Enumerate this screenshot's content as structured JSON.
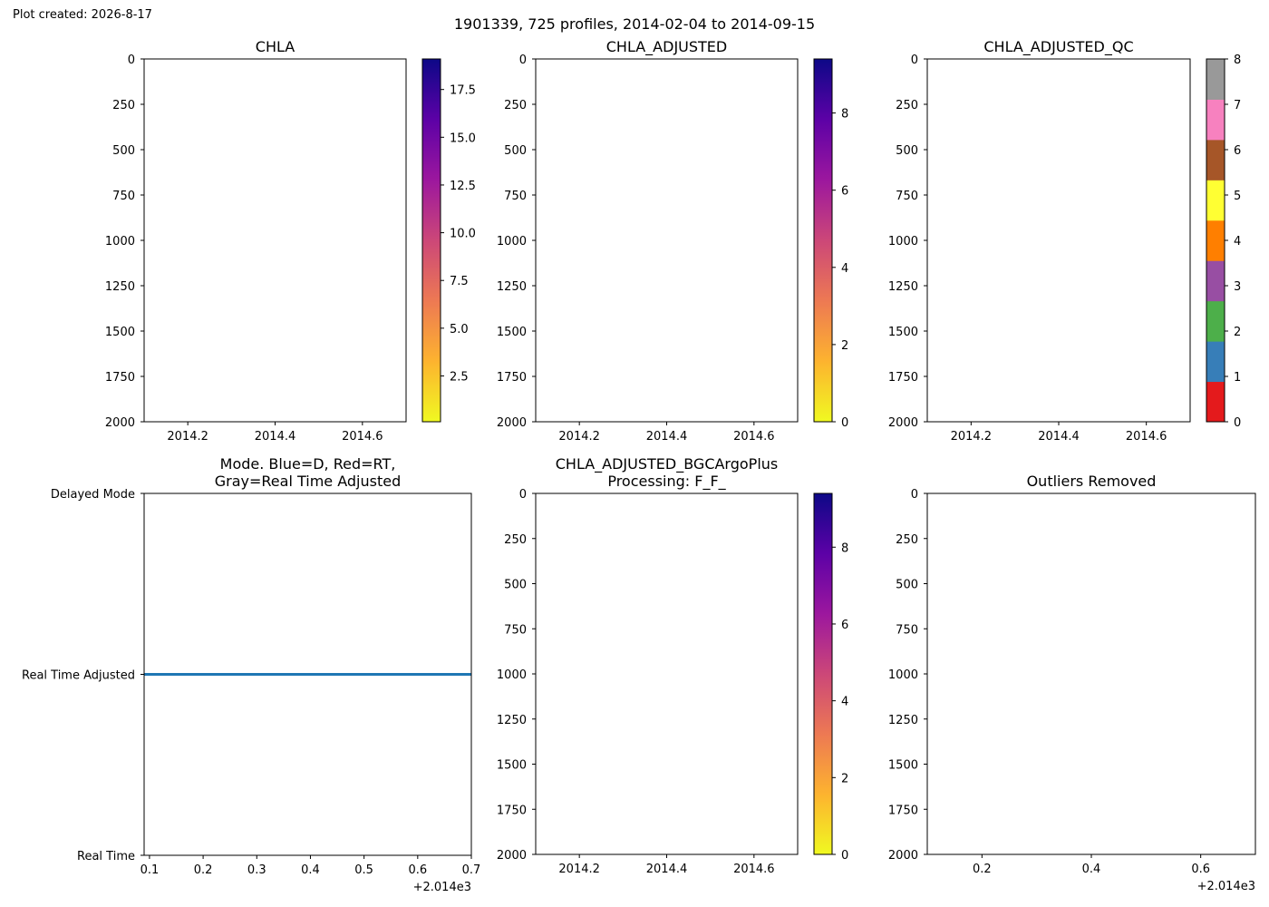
{
  "figure": {
    "created_label": "Plot created: 2026-8-17",
    "suptitle": "1901339, 725 profiles, 2014-02-04 to 2014-09-15"
  },
  "chart_data": [
    {
      "type": "heatmap",
      "title": "CHLA",
      "xlim": [
        2014.1,
        2014.7
      ],
      "xticks": [
        2014.2,
        2014.4,
        2014.6
      ],
      "xtick_labels": [
        "2014.2",
        "2014.4",
        "2014.6"
      ],
      "ylim": [
        0,
        2000
      ],
      "yinverted": true,
      "yticks": [
        0,
        250,
        500,
        750,
        1000,
        1250,
        1500,
        1750,
        2000
      ],
      "ytick_labels": [
        "0",
        "250",
        "500",
        "750",
        "1000",
        "1250",
        "1500",
        "1750",
        "2000"
      ],
      "values": [],
      "colorbar": {
        "colormap": "plasma_r",
        "range": [
          0.1,
          19.1
        ],
        "ticks": [
          2.5,
          5.0,
          7.5,
          10.0,
          12.5,
          15.0,
          17.5
        ],
        "tick_labels": [
          "2.5",
          "5.0",
          "7.5",
          "10.0",
          "12.5",
          "15.0",
          "17.5"
        ],
        "colors": [
          "#f0f921",
          "#fdb32f",
          "#ed7953",
          "#cc4778",
          "#9c179e",
          "#5c01a6",
          "#0d0887"
        ]
      }
    },
    {
      "type": "heatmap",
      "title": "CHLA_ADJUSTED",
      "xlim": [
        2014.1,
        2014.7
      ],
      "xticks": [
        2014.2,
        2014.4,
        2014.6
      ],
      "xtick_labels": [
        "2014.2",
        "2014.4",
        "2014.6"
      ],
      "ylim": [
        0,
        2000
      ],
      "yinverted": true,
      "yticks": [
        0,
        250,
        500,
        750,
        1000,
        1250,
        1500,
        1750,
        2000
      ],
      "ytick_labels": [
        "0",
        "250",
        "500",
        "750",
        "1000",
        "1250",
        "1500",
        "1750",
        "2000"
      ],
      "values": [],
      "colorbar": {
        "colormap": "plasma_r",
        "range": [
          0,
          9.4
        ],
        "ticks": [
          0,
          2,
          4,
          6,
          8
        ],
        "tick_labels": [
          "0",
          "2",
          "4",
          "6",
          "8"
        ],
        "colors": [
          "#f0f921",
          "#fdb32f",
          "#ed7953",
          "#cc4778",
          "#9c179e",
          "#5c01a6",
          "#0d0887"
        ]
      }
    },
    {
      "type": "heatmap",
      "title": "CHLA_ADJUSTED_QC",
      "xlim": [
        2014.1,
        2014.7
      ],
      "xticks": [
        2014.2,
        2014.4,
        2014.6
      ],
      "xtick_labels": [
        "2014.2",
        "2014.4",
        "2014.6"
      ],
      "ylim": [
        0,
        2000
      ],
      "yinverted": true,
      "yticks": [
        0,
        250,
        500,
        750,
        1000,
        1250,
        1500,
        1750,
        2000
      ],
      "ytick_labels": [
        "0",
        "250",
        "500",
        "750",
        "1000",
        "1250",
        "1500",
        "1750",
        "2000"
      ],
      "values": [],
      "colorbar": {
        "colormap": "Set1",
        "discrete": true,
        "range": [
          0,
          8
        ],
        "ticks": [
          0,
          1,
          2,
          3,
          4,
          5,
          6,
          7,
          8
        ],
        "tick_labels": [
          "0",
          "1",
          "2",
          "3",
          "4",
          "5",
          "6",
          "7",
          "8"
        ],
        "colors": [
          "#e41a1c",
          "#377eb8",
          "#4daf4a",
          "#984ea3",
          "#ff7f00",
          "#ffff33",
          "#a65628",
          "#f781bf",
          "#999999"
        ]
      }
    },
    {
      "type": "line",
      "title": "Mode. Blue=D, Red=RT,\nGray=Real Time Adjusted",
      "xlim": [
        0.09,
        0.7
      ],
      "xticks": [
        0.1,
        0.2,
        0.3,
        0.4,
        0.5,
        0.6,
        0.7
      ],
      "xtick_labels": [
        "0.1",
        "0.2",
        "0.3",
        "0.4",
        "0.5",
        "0.6",
        "0.7"
      ],
      "x_offset_label": "+2.014e3",
      "ylim": [
        0,
        2
      ],
      "yticks": [
        0,
        1,
        2
      ],
      "ytick_labels": [
        "Real Time",
        "Real Time Adjusted",
        "Delayed Mode"
      ],
      "series": [
        {
          "x": [
            0.09,
            0.7
          ],
          "y": [
            1,
            1
          ],
          "color": "#1f77b4"
        }
      ]
    },
    {
      "type": "heatmap",
      "title": "CHLA_ADJUSTED_BGCArgoPlus\nProcessing: F_F_",
      "xlim": [
        2014.1,
        2014.7
      ],
      "xticks": [
        2014.2,
        2014.4,
        2014.6
      ],
      "xtick_labels": [
        "2014.2",
        "2014.4",
        "2014.6"
      ],
      "ylim": [
        0,
        2000
      ],
      "yinverted": true,
      "yticks": [
        0,
        250,
        500,
        750,
        1000,
        1250,
        1500,
        1750,
        2000
      ],
      "ytick_labels": [
        "0",
        "250",
        "500",
        "750",
        "1000",
        "1250",
        "1500",
        "1750",
        "2000"
      ],
      "values": [],
      "colorbar": {
        "colormap": "plasma_r",
        "range": [
          0,
          9.4
        ],
        "ticks": [
          0,
          2,
          4,
          6,
          8
        ],
        "tick_labels": [
          "0",
          "2",
          "4",
          "6",
          "8"
        ],
        "colors": [
          "#f0f921",
          "#fdb32f",
          "#ed7953",
          "#cc4778",
          "#9c179e",
          "#5c01a6",
          "#0d0887"
        ]
      }
    },
    {
      "type": "scatter",
      "title": "Outliers Removed",
      "xlim": [
        0.1,
        0.7
      ],
      "xticks": [
        0.2,
        0.4,
        0.6
      ],
      "xtick_labels": [
        "0.2",
        "0.4",
        "0.6"
      ],
      "x_offset_label": "+2.014e3",
      "ylim": [
        0,
        2000
      ],
      "yinverted": true,
      "yticks": [
        0,
        250,
        500,
        750,
        1000,
        1250,
        1500,
        1750,
        2000
      ],
      "ytick_labels": [
        "0",
        "250",
        "500",
        "750",
        "1000",
        "1250",
        "1500",
        "1750",
        "2000"
      ],
      "points": []
    }
  ]
}
